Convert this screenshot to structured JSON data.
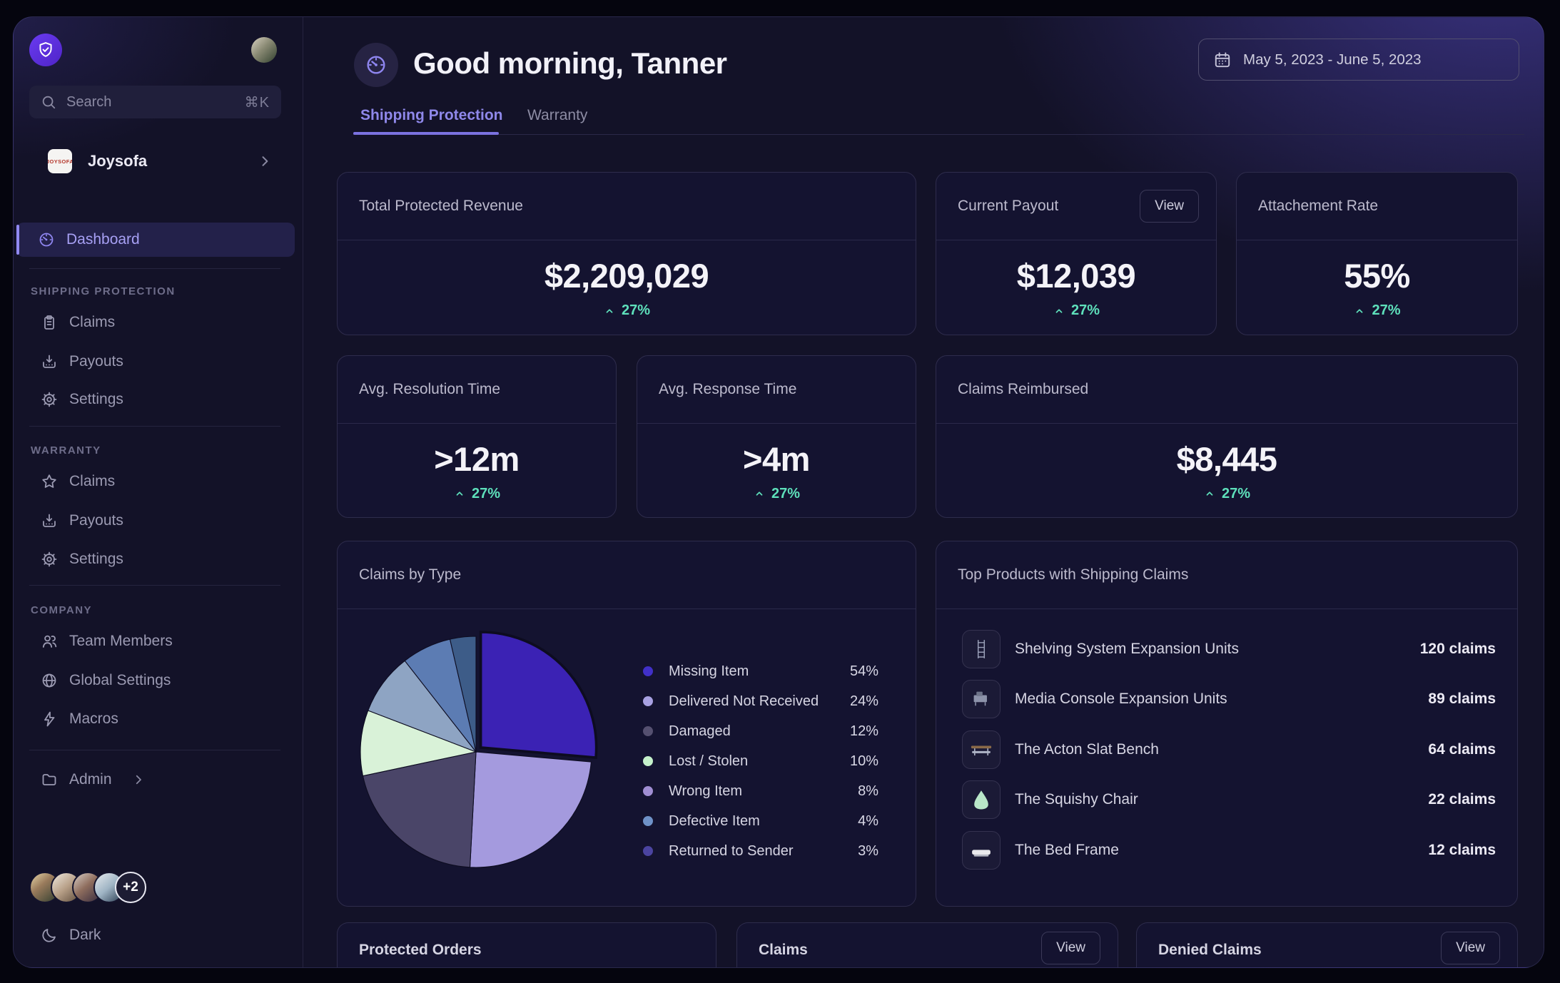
{
  "header": {
    "greeting": "Good morning, Tanner",
    "tabs": [
      {
        "label": "Shipping Protection",
        "active": true
      },
      {
        "label": "Warranty",
        "active": false
      }
    ],
    "date_range": "May 5, 2023 - June 5, 2023"
  },
  "sidebar": {
    "search_placeholder": "Search",
    "search_shortcut": "⌘K",
    "brand": {
      "name": "Joysofa",
      "logo_text": "JOYSOFA"
    },
    "dashboard_label": "Dashboard",
    "sections": [
      {
        "title": "SHIPPING PROTECTION",
        "items": [
          "Claims",
          "Payouts",
          "Settings"
        ]
      },
      {
        "title": "WARRANTY",
        "items": [
          "Claims",
          "Payouts",
          "Settings"
        ]
      },
      {
        "title": "COMPANY",
        "items": [
          "Team Members",
          "Global Settings",
          "Macros"
        ]
      }
    ],
    "admin_label": "Admin",
    "avatars_more": "+2",
    "theme_label": "Dark"
  },
  "stats": [
    {
      "label": "Total Protected Revenue",
      "value": "$2,209,029",
      "delta": "27%"
    },
    {
      "label": "Current Payout",
      "value": "$12,039",
      "delta": "27%",
      "action": "View"
    },
    {
      "label": "Attachement Rate",
      "value": "55%",
      "delta": "27%"
    },
    {
      "label": "Avg. Resolution Time",
      "value": ">12m",
      "delta": "27%"
    },
    {
      "label": "Avg. Response Time",
      "value": ">4m",
      "delta": "27%"
    },
    {
      "label": "Claims Reimbursed",
      "value": "$8,445",
      "delta": "27%"
    }
  ],
  "chart_data": {
    "type": "pie",
    "title": "Claims by Type",
    "legend_position": "right",
    "slices": [
      {
        "label": "Missing Item",
        "value": 54,
        "pct_label": "54%",
        "legend_color": "#4130c8",
        "slice_color": "#3b22b4",
        "start_deg": 0,
        "end_deg": 95,
        "exploded": true
      },
      {
        "label": "Delivered Not Received",
        "value": 24,
        "pct_label": "24%",
        "legend_color": "#a8a1e2",
        "slice_color": "#a49ade",
        "start_deg": 95,
        "end_deg": 183,
        "exploded": false
      },
      {
        "label": "Damaged",
        "value": 12,
        "pct_label": "12%",
        "legend_color": "#555070",
        "slice_color": "#4a4568",
        "start_deg": 183,
        "end_deg": 258,
        "exploded": false
      },
      {
        "label": "Lost / Stolen",
        "value": 10,
        "pct_label": "10%",
        "legend_color": "#c5f1cb",
        "slice_color": "#d9f2d8",
        "start_deg": 258,
        "end_deg": 291,
        "exploded": false
      },
      {
        "label": "Wrong Item",
        "value": 8,
        "pct_label": "8%",
        "legend_color": "#a08ed3",
        "slice_color": "#8ea4c3",
        "start_deg": 291,
        "end_deg": 322,
        "exploded": false
      },
      {
        "label": "Defective Item",
        "value": 4,
        "pct_label": "4%",
        "legend_color": "#6f92c8",
        "slice_color": "#5c7cb3",
        "start_deg": 322,
        "end_deg": 347,
        "exploded": false
      },
      {
        "label": "Returned to Sender",
        "value": 3,
        "pct_label": "3%",
        "legend_color": "#4b44a0",
        "slice_color": "#3d5c88",
        "start_deg": 347,
        "end_deg": 360,
        "exploded": false
      }
    ]
  },
  "top_products": {
    "title": "Top Products with Shipping Claims",
    "items": [
      {
        "name": "Shelving System Expansion Units",
        "claims": "120 claims"
      },
      {
        "name": "Media Console Expansion Units",
        "claims": "89 claims"
      },
      {
        "name": "The Acton Slat Bench",
        "claims": "64 claims"
      },
      {
        "name": "The Squishy Chair",
        "claims": "22 claims"
      },
      {
        "name": "The Bed Frame",
        "claims": "12 claims"
      }
    ]
  },
  "bottom_cards": [
    {
      "label": "Protected Orders",
      "action": ""
    },
    {
      "label": "Claims",
      "action": "View"
    },
    {
      "label": "Denied Claims",
      "action": "View"
    }
  ],
  "colors": {
    "accent_purple": "#7b72e0",
    "delta_teal": "#5ee0bb",
    "brand_logo_red": "#b5372c",
    "panel_glow": "#4c42be"
  }
}
